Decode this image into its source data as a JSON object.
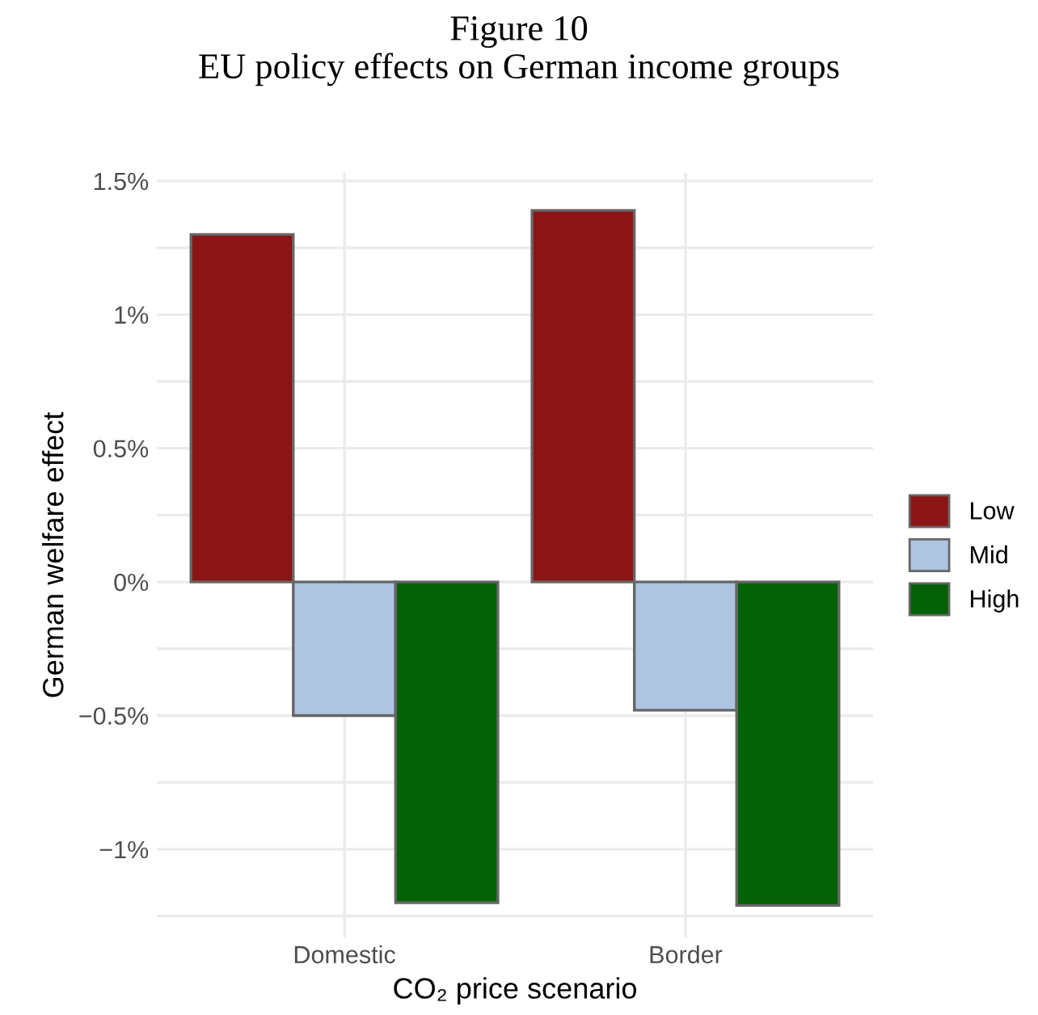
{
  "chart_data": {
    "type": "bar",
    "title": "Figure 10\nEU policy effects on German income groups",
    "xlabel": "CO₂ price scenario",
    "ylabel": "German welfare effect",
    "categories": [
      "Domestic",
      "Border"
    ],
    "series": [
      {
        "name": "Low",
        "color": "#8b1414",
        "values": [
          1.3,
          1.39
        ]
      },
      {
        "name": "Mid",
        "color": "#aec4e0",
        "values": [
          -0.5,
          -0.48
        ]
      },
      {
        "name": "High",
        "color": "#056105",
        "values": [
          -1.2,
          -1.21
        ]
      }
    ],
    "ylim": [
      -1.33,
      1.53
    ],
    "yticks": [
      {
        "value": -1.25,
        "label": null
      },
      {
        "value": -1,
        "label": "−1%"
      },
      {
        "value": -0.75,
        "label": null
      },
      {
        "value": -0.5,
        "label": "−0.5%"
      },
      {
        "value": -0.25,
        "label": null
      },
      {
        "value": 0,
        "label": "0%"
      },
      {
        "value": 0.25,
        "label": null
      },
      {
        "value": 0.5,
        "label": "0.5%"
      },
      {
        "value": 0.75,
        "label": null
      },
      {
        "value": 1,
        "label": "1%"
      },
      {
        "value": 1.25,
        "label": null
      },
      {
        "value": 1.5,
        "label": "1.5%"
      }
    ],
    "grid": true,
    "legend": "right"
  }
}
